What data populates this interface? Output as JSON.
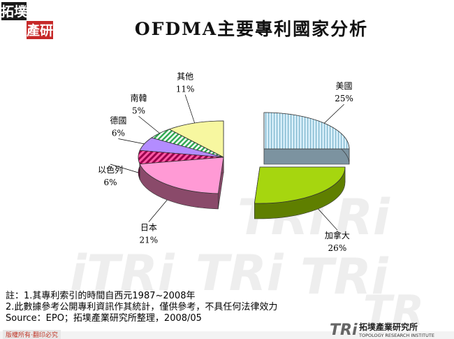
{
  "logo": {
    "line1": "拓墣",
    "line2": "產研"
  },
  "title": "OFDMA主要專利國家分析",
  "chart_data": {
    "type": "pie",
    "title": "OFDMA主要專利國家分析",
    "categories": [
      "美國",
      "加拿大",
      "日本",
      "以色列",
      "德國",
      "南韓",
      "其他"
    ],
    "values": [
      25,
      26,
      21,
      6,
      6,
      5,
      11
    ],
    "value_labels": [
      "25%",
      "26%",
      "21%",
      "6%",
      "6%",
      "5%",
      "11%"
    ],
    "colors": [
      "#cfe9f5",
      "#99cc00",
      "#ff99cc",
      "#cc0066",
      "#9966ff",
      "#33cc66",
      "#ffff99"
    ],
    "exploded": [
      "美國",
      "加拿大"
    ],
    "three_d": true
  },
  "notes": {
    "line1": "註：1.其專利索引的時間自西元1987~2008年",
    "line2": "2.此數據參考公開專利資訊作其統計，僅供參考，不具任何法律效力",
    "line3": "Source：EPO；拓墣產業研究所整理，2008/05"
  },
  "footer": {
    "copyright": "版權所有‧翻印必究",
    "brand_abbr": "TRi",
    "brand_cn": "拓墣產業研究所",
    "brand_en": "TOPOLOGY RESEARCH INSTITUTE"
  }
}
